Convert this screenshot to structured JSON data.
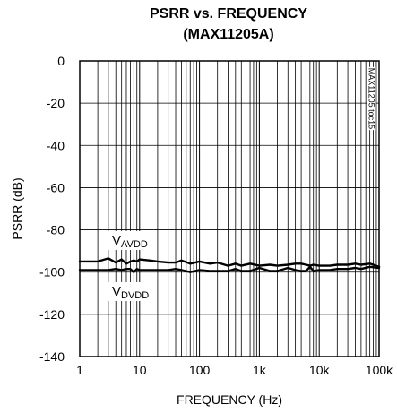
{
  "chart_data": {
    "type": "line",
    "title": "PSRR vs. FREQUENCY",
    "subtitle": "(MAX11205A)",
    "xlabel": "FREQUENCY (Hz)",
    "ylabel": "PSRR (dB)",
    "x_scale": "log",
    "xlim": [
      1,
      100000
    ],
    "ylim": [
      -140,
      0
    ],
    "x_ticks": [
      1,
      10,
      100,
      1000,
      10000,
      100000
    ],
    "x_tick_labels": [
      "1",
      "10",
      "100",
      "1k",
      "10k",
      "100k"
    ],
    "y_ticks": [
      0,
      -20,
      -40,
      -60,
      -80,
      -100,
      -120,
      -140
    ],
    "y_tick_labels": [
      "0",
      "-20",
      "-40",
      "-60",
      "-80",
      "-100",
      "-120",
      "-140"
    ],
    "grid": true,
    "code_label": "MAX11205 toc15",
    "annotations": [
      {
        "main": "V",
        "sub": "AVDD",
        "series": "AVDD"
      },
      {
        "main": "V",
        "sub": "DVDD",
        "series": "DVDD"
      }
    ],
    "series": [
      {
        "id": "AVDD",
        "x": [
          1,
          1.5,
          2,
          3,
          4,
          5,
          6,
          7,
          8,
          9,
          10,
          15,
          20,
          30,
          40,
          50,
          70,
          100,
          150,
          200,
          300,
          400,
          500,
          700,
          1000,
          1500,
          2000,
          3000,
          4000,
          5000,
          6000,
          7000,
          8000,
          10000,
          15000,
          20000,
          30000,
          40000,
          50000,
          70000,
          100000
        ],
        "y": [
          -95,
          -95,
          -95,
          -93.5,
          -95.5,
          -94,
          -96,
          -95,
          -94.5,
          -95,
          -94,
          -94.5,
          -95,
          -95.5,
          -95.5,
          -94.5,
          -96,
          -95,
          -96,
          -95.5,
          -97,
          -96,
          -97,
          -96,
          -97,
          -96.5,
          -97,
          -96.5,
          -96,
          -96,
          -96.5,
          -97,
          -96.5,
          -97,
          -97,
          -96.5,
          -96.5,
          -96,
          -96.5,
          -96,
          -97.5
        ]
      },
      {
        "id": "DVDD",
        "x": [
          1,
          1.5,
          2,
          3,
          4,
          5,
          6,
          7,
          8,
          9,
          10,
          15,
          20,
          30,
          40,
          50,
          70,
          100,
          150,
          200,
          300,
          400,
          500,
          700,
          1000,
          1500,
          2000,
          3000,
          4000,
          5000,
          6000,
          7000,
          8000,
          10000,
          15000,
          20000,
          30000,
          40000,
          50000,
          70000,
          100000
        ],
        "y": [
          -99,
          -99,
          -99,
          -99,
          -98.5,
          -99,
          -98.5,
          -98.5,
          -100,
          -98.5,
          -99,
          -99,
          -99,
          -99,
          -98.5,
          -99,
          -100,
          -99,
          -99.5,
          -99.5,
          -99.5,
          -98.5,
          -99.5,
          -99.5,
          -98,
          -99.5,
          -99.5,
          -98,
          -99,
          -99.5,
          -99.5,
          -97.5,
          -99.5,
          -99,
          -99,
          -98.5,
          -98.5,
          -98,
          -98.5,
          -97.5,
          -98
        ]
      }
    ]
  }
}
